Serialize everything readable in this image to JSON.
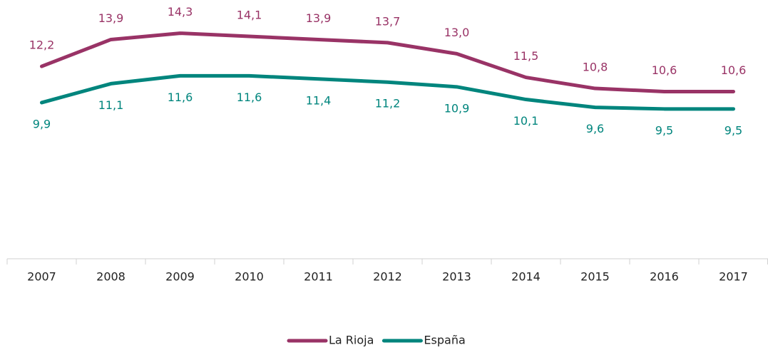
{
  "chart_data": {
    "type": "line",
    "categories": [
      "2007",
      "2008",
      "2009",
      "2010",
      "2011",
      "2012",
      "2013",
      "2014",
      "2015",
      "2016",
      "2017"
    ],
    "series": [
      {
        "name": "La Rioja",
        "color": "#993366",
        "values": [
          12.2,
          13.9,
          14.3,
          14.1,
          13.9,
          13.7,
          13.0,
          11.5,
          10.8,
          10.6,
          10.6
        ],
        "value_labels": [
          "12,2",
          "13,9",
          "14,3",
          "14,1",
          "13,9",
          "13,7",
          "13,0",
          "11,5",
          "10,8",
          "10,6",
          "10,6"
        ]
      },
      {
        "name": "España",
        "color": "#00857d",
        "values": [
          9.9,
          11.1,
          11.6,
          11.6,
          11.4,
          11.2,
          10.9,
          10.1,
          9.6,
          9.5,
          9.5
        ],
        "value_labels": [
          "9,9",
          "11,1",
          "11,6",
          "11,6",
          "11,4",
          "11,2",
          "10,9",
          "10,1",
          "9,6",
          "9,5",
          "9,5"
        ]
      }
    ],
    "ylim": [
      0,
      16
    ],
    "legend": "bottom"
  }
}
